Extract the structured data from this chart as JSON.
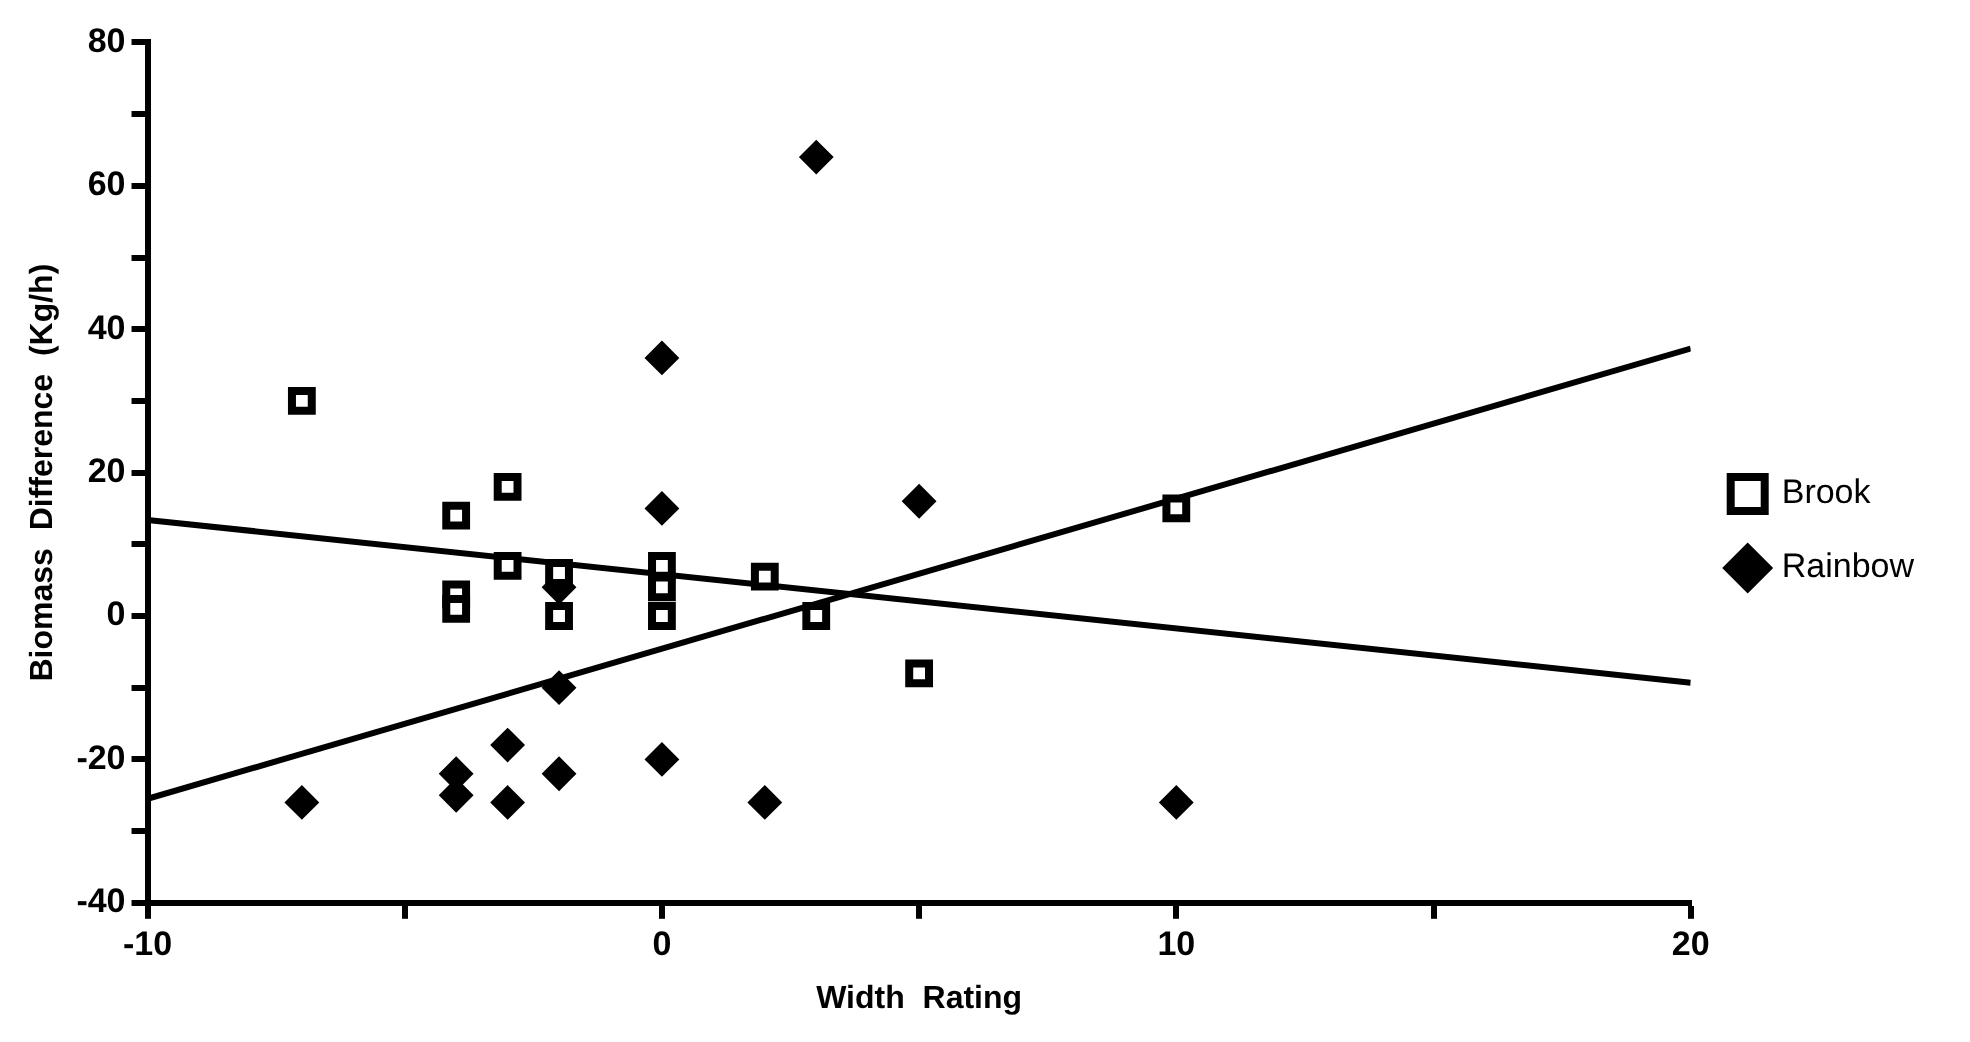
{
  "chart_data": {
    "type": "scatter",
    "xlabel": "Width  Rating",
    "ylabel": "Biomass  Difference  (Kg/h)",
    "xlim": [
      -10,
      20
    ],
    "xticks": [
      -10,
      {
        "value": -5,
        "label": null
      },
      0,
      {
        "value": 5,
        "label": null
      },
      10,
      {
        "value": 15,
        "label": null
      },
      20
    ],
    "ylim": [
      -40,
      80
    ],
    "yticks": [
      -40,
      {
        "value": -30,
        "label": null
      },
      -20,
      {
        "value": -10,
        "label": null
      },
      0,
      {
        "value": 10,
        "label": null
      },
      20,
      {
        "value": 30,
        "label": null
      },
      40,
      {
        "value": 50,
        "label": null
      },
      60,
      {
        "value": 70,
        "label": null
      },
      80
    ],
    "grid": false,
    "legend": "right",
    "series": [
      {
        "name": "Brook",
        "type": "scatter",
        "marker": "square",
        "color": "#000000",
        "x": [
          -7,
          -4,
          -4,
          -4,
          -3,
          -3,
          -2,
          -2,
          0,
          0,
          0,
          2,
          3,
          5,
          10
        ],
        "values": [
          30,
          14,
          3,
          1,
          18,
          7,
          6,
          0,
          7,
          4,
          0,
          5.5,
          0,
          -8,
          15
        ]
      },
      {
        "name": "Rainbow",
        "type": "scatter",
        "marker": "diamond",
        "color": "#000000",
        "x": [
          -7,
          -4,
          -4,
          -3,
          -3,
          -2,
          -2,
          -2,
          0,
          0,
          0,
          2,
          3,
          5,
          10
        ],
        "values": [
          -26,
          -22,
          -25,
          -18,
          -26,
          -10,
          -22,
          4,
          36,
          15,
          -20,
          -26,
          64,
          16,
          -26
        ]
      },
      {
        "type": "line",
        "marker": "none",
        "color": "#000000",
        "x": [
          -10,
          20
        ],
        "values": [
          13.4,
          -9.3
        ]
      },
      {
        "type": "line",
        "marker": "none",
        "color": "#000000",
        "x": [
          -10,
          20
        ],
        "values": [
          -25.5,
          37.3
        ]
      }
    ]
  }
}
